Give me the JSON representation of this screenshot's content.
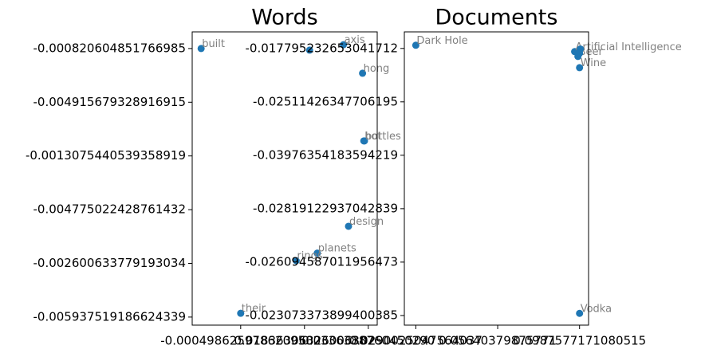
{
  "chart_data": [
    {
      "type": "scatter",
      "title": "Words",
      "color": "#1f77b4",
      "labels": [
        "built",
        "axis",
        null,
        "hong",
        "hot",
        "bottles",
        "design",
        "planets",
        "rings",
        "their"
      ],
      "x": [
        -0.62,
        1.61,
        1.08,
        1.91,
        1.93,
        1.94,
        1.69,
        1.2,
        0.87,
        0
      ],
      "y": [
        5,
        5.07,
        4.97,
        4.54,
        3.28,
        3.28,
        1.69,
        1.19,
        1.05,
        0.07
      ],
      "xlim": [
        -0.76,
        2.14
      ],
      "ylim": [
        -0.15,
        5.31
      ],
      "xticks": [
        {
          "value": 0,
          "label": "-0.0004986259786209502"
        },
        {
          "value": 1,
          "label": "0.01836306326006302"
        },
        {
          "value": 2,
          "label": "0.0336388760450290"
        }
      ],
      "yticks": [
        {
          "value": 0,
          "label": "-0.005937519186624339"
        },
        {
          "value": 1,
          "label": "-0.002600633779193034"
        },
        {
          "value": 2,
          "label": "-0.004775022428761432"
        },
        {
          "value": 3,
          "label": "-0.001307544053935891​9"
        },
        {
          "value": 4,
          "label": "-0.004915679328916915"
        },
        {
          "value": 5,
          "label": "-0.0008206048517669​85"
        }
      ]
    },
    {
      "type": "scatter",
      "title": "Documents",
      "color": "#1f77b4",
      "labels": [
        "Dark Hole",
        "Artificial Intelligence",
        "Beer",
        "Wine",
        null,
        null,
        "Vodka"
      ],
      "x": [
        0,
        1.94,
        1.98,
        2.0,
        2.01,
        2.0,
        2.0
      ],
      "y": [
        5.06,
        4.94,
        4.85,
        4.64,
        4.99,
        4.91,
        0.04
      ],
      "xlim": [
        -0.14,
        2.11
      ],
      "ylim": [
        -0.18,
        5.31
      ],
      "xticks": [
        {
          "value": 0,
          "label": "0.0290025047564037"
        },
        {
          "value": 1,
          "label": "0.05640379875771"
        },
        {
          "value": 2,
          "label": "0.0987577171080515"
        }
      ],
      "yticks": [
        {
          "value": 0,
          "label": "-0.023073373899400385"
        },
        {
          "value": 1,
          "label": "-0.026094587011956473"
        },
        {
          "value": 2,
          "label": "-0.02819122937042839"
        },
        {
          "value": 3,
          "label": "-0.03976354183594219"
        },
        {
          "value": 4,
          "label": "-0.02511426347706195"
        },
        {
          "value": 5,
          "label": "-0.017795232653041712"
        }
      ]
    }
  ]
}
